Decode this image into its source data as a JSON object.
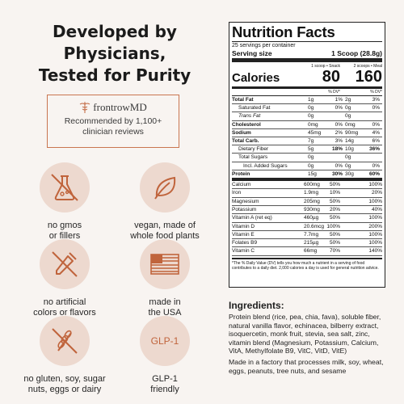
{
  "headline": [
    "Developed by",
    "Physicians,",
    "Tested for Purity"
  ],
  "endorsement": {
    "brand": "frontrowMD",
    "text": "Recommended by 1,100+ clinician reviews"
  },
  "features": [
    {
      "icon": "flask-icon",
      "label_lines": [
        "no gmos",
        "or fillers"
      ]
    },
    {
      "icon": "leaf-icon",
      "label_lines": [
        "vegan, made of",
        "whole food plants"
      ]
    },
    {
      "icon": "dropper-icon",
      "label_lines": [
        "no artificial",
        "colors or flavors"
      ]
    },
    {
      "icon": "us-flag-icon",
      "label_lines": [
        "made in",
        "the USA"
      ]
    },
    {
      "icon": "no-wheat-icon",
      "label_lines": [
        "no gluten, soy, sugar",
        "nuts, eggs or dairy"
      ]
    },
    {
      "icon": "glp1-icon",
      "icon_text": "GLP-1",
      "label_lines": [
        "GLP-1",
        "friendly"
      ]
    }
  ],
  "nutrition": {
    "title": "Nutrition Facts",
    "servings": "25 servings per container",
    "serving_size_label": "Serving size",
    "serving_size_value": "1 Scoop (28.8g)",
    "col1_head": "1 scoop • Snack",
    "col2_head": "2 scoops • Meal",
    "calories_label": "Calories",
    "calories_1": "80",
    "calories_2": "160",
    "dv_label": "% DV*",
    "rows": [
      {
        "name": "Total Fat",
        "v1": "1g",
        "p1": "1%",
        "v2": "2g",
        "p2": "3%",
        "style": "b"
      },
      {
        "name": "Saturated Fat",
        "v1": "0g",
        "p1": "0%",
        "v2": "0g",
        "p2": "0%",
        "style": "ind"
      },
      {
        "name": "Trans Fat",
        "v1": "0g",
        "p1": "",
        "v2": "0g",
        "p2": "",
        "style": "ind i"
      },
      {
        "name": "Cholesterol",
        "v1": "0mg",
        "p1": "0%",
        "v2": "0mg",
        "p2": "0%",
        "style": "b"
      },
      {
        "name": "Sodium",
        "v1": "45mg",
        "p1": "2%",
        "v2": "90mg",
        "p2": "4%",
        "style": "b"
      },
      {
        "name": "Total Carb.",
        "v1": "7g",
        "p1": "3%",
        "v2": "14g",
        "p2": "6%",
        "style": "b"
      },
      {
        "name": "Dietary Fiber",
        "v1": "5g",
        "p1": "18%",
        "v2": "10g",
        "p2": "36%",
        "style": "ind bold-p"
      },
      {
        "name": "Total Sugars",
        "v1": "0g",
        "p1": "",
        "v2": "0g",
        "p2": "",
        "style": "ind"
      },
      {
        "name": "Incl. Added Sugars",
        "v1": "0g",
        "p1": "0%",
        "v2": "0g",
        "p2": "0%",
        "style": "ind2"
      },
      {
        "name": "Protein",
        "v1": "15g",
        "p1": "30%",
        "v2": "30g",
        "p2": "60%",
        "style": "b bold-p thick"
      }
    ],
    "vitamins": [
      {
        "name": "Calcium",
        "v1": "600mg",
        "p1": "50%",
        "v2": "",
        "p2": "100%"
      },
      {
        "name": "Iron",
        "v1": "1.9mg",
        "p1": "10%",
        "v2": "",
        "p2": "20%"
      },
      {
        "name": "Magnesium",
        "v1": "205mg",
        "p1": "50%",
        "v2": "",
        "p2": "100%"
      },
      {
        "name": "Potassium",
        "v1": "930mg",
        "p1": "20%",
        "v2": "",
        "p2": "40%"
      },
      {
        "name": "Vitamin A (ret eq)",
        "v1": "460µg",
        "p1": "50%",
        "v2": "",
        "p2": "100%"
      },
      {
        "name": "Vitamin D",
        "v1": "20.6mcg",
        "p1": "100%",
        "v2": "",
        "p2": "200%"
      },
      {
        "name": "Vitamin E",
        "v1": "7.7mg",
        "p1": "50%",
        "v2": "",
        "p2": "100%"
      },
      {
        "name": "Folates B9",
        "v1": "215µg",
        "p1": "50%",
        "v2": "",
        "p2": "100%"
      },
      {
        "name": "Vitamin C",
        "v1": "66mg",
        "p1": "70%",
        "v2": "",
        "p2": "140%"
      }
    ],
    "footnote": "*The % Daily Value (DV) tells you how much a nutrient in a serving of food contributes to a daily diet. 2,000 calories a day is used for general nutrition advice."
  },
  "ingredients": {
    "title": "Ingredients:",
    "text": "Protein blend (rice, pea, chia, fava), soluble fiber, natural vanilla flavor, echinacea, bilberry extract, isoquercetin, monk fruit, stevia, sea salt, zinc, vitamin blend (Magnesium, Potassium, Calcium, VitA, Methylfolate B9, VitC, VitD, VitE)",
    "allergen": "Made in a factory that processes milk, soy, wheat, eggs, peanuts, tree nuts, and sesame"
  },
  "colors": {
    "accent": "#c0643c",
    "circle": "#edd9cf",
    "background": "#f8f4f1"
  }
}
